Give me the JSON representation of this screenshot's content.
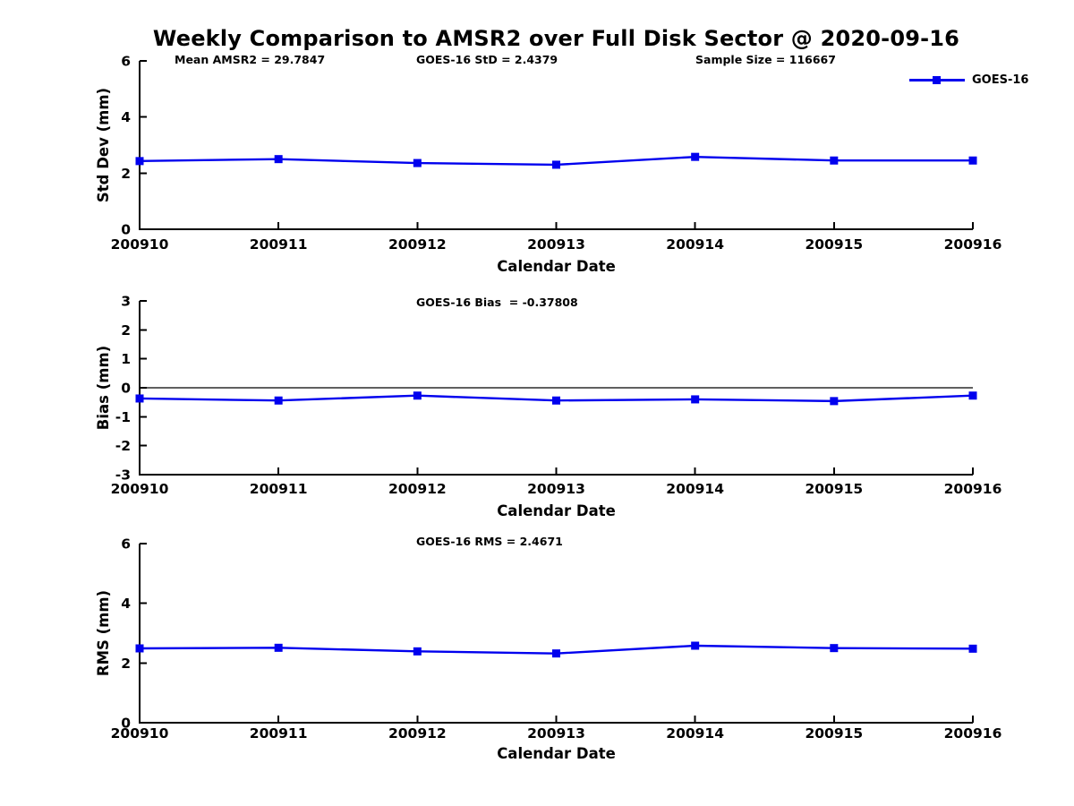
{
  "title": "Weekly Comparison to AMSR2 over Full Disk Sector @ 2020-09-16",
  "legend": {
    "label": "GOES-16",
    "color": "#0000ee",
    "position": "top-right"
  },
  "chart_data": [
    {
      "type": "line",
      "id": "std-dev",
      "ylabel": "Std Dev (mm)",
      "xlabel": "Calendar Date",
      "ylim": [
        0,
        6
      ],
      "yticks": [
        0,
        2,
        4,
        6
      ],
      "grid": false,
      "categories": [
        "200910",
        "200911",
        "200912",
        "200913",
        "200914",
        "200915",
        "200916"
      ],
      "series": [
        {
          "name": "GOES-16",
          "color": "#0000ee",
          "marker": "square",
          "values": [
            2.43,
            2.5,
            2.36,
            2.3,
            2.58,
            2.45,
            2.45
          ]
        }
      ],
      "annotations": [
        "Mean AMSR2 = 29.7847",
        "GOES-16 StD = 2.4379",
        "Sample Size = 116667"
      ]
    },
    {
      "type": "line",
      "id": "bias",
      "ylabel": "Bias (mm)",
      "xlabel": "Calendar Date",
      "ylim": [
        -3,
        3
      ],
      "yticks": [
        -3,
        -2,
        -1,
        0,
        1,
        2,
        3
      ],
      "zero_line": true,
      "grid": false,
      "categories": [
        "200910",
        "200911",
        "200912",
        "200913",
        "200914",
        "200915",
        "200916"
      ],
      "series": [
        {
          "name": "GOES-16",
          "color": "#0000ee",
          "marker": "square",
          "values": [
            -0.37,
            -0.44,
            -0.27,
            -0.44,
            -0.4,
            -0.46,
            -0.27
          ]
        }
      ],
      "annotations": [
        "GOES-16 Bias  = -0.37808"
      ]
    },
    {
      "type": "line",
      "id": "rms",
      "ylabel": "RMS (mm)",
      "xlabel": "Calendar Date",
      "ylim": [
        0,
        6
      ],
      "yticks": [
        0,
        2,
        4,
        6
      ],
      "grid": false,
      "categories": [
        "200910",
        "200911",
        "200912",
        "200913",
        "200914",
        "200915",
        "200916"
      ],
      "series": [
        {
          "name": "GOES-16",
          "color": "#0000ee",
          "marker": "square",
          "values": [
            2.49,
            2.51,
            2.39,
            2.32,
            2.58,
            2.5,
            2.48
          ]
        }
      ],
      "annotations": [
        "GOES-16 RMS = 2.4671"
      ]
    }
  ]
}
